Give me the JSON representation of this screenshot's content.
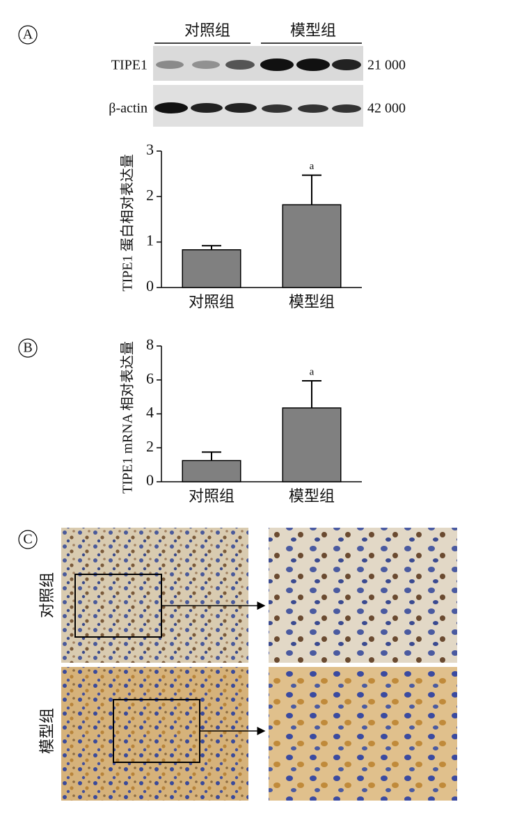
{
  "panels": [
    "A",
    "B",
    "C"
  ],
  "blot": {
    "groups": [
      "对照组",
      "模型组"
    ],
    "rows": [
      {
        "name": "TIPE1",
        "mw": "21 000"
      },
      {
        "name": "β-actin",
        "mw": "42 000"
      }
    ]
  },
  "chart_data": [
    {
      "type": "bar",
      "ylabel": "TIPE1 蛋白相对表达量",
      "categories": [
        "对照组",
        "模型组"
      ],
      "values": [
        0.83,
        1.82
      ],
      "errors": [
        0.09,
        0.65
      ],
      "color": "#808080",
      "ylim": [
        0,
        3
      ],
      "yticks": [
        0,
        1,
        2,
        3
      ],
      "annotations": [
        {
          "category": "模型组",
          "text": "a"
        }
      ]
    },
    {
      "type": "bar",
      "ylabel": "TIPE1 mRNA 相对表达量",
      "categories": [
        "对照组",
        "模型组"
      ],
      "values": [
        1.25,
        4.35
      ],
      "errors": [
        0.5,
        1.6
      ],
      "color": "#808080",
      "ylim": [
        0,
        8
      ],
      "yticks": [
        0,
        2,
        4,
        6,
        8
      ],
      "annotations": [
        {
          "category": "模型组",
          "text": "a"
        }
      ]
    }
  ],
  "histology": {
    "rows": [
      "对照组",
      "模型组"
    ]
  }
}
